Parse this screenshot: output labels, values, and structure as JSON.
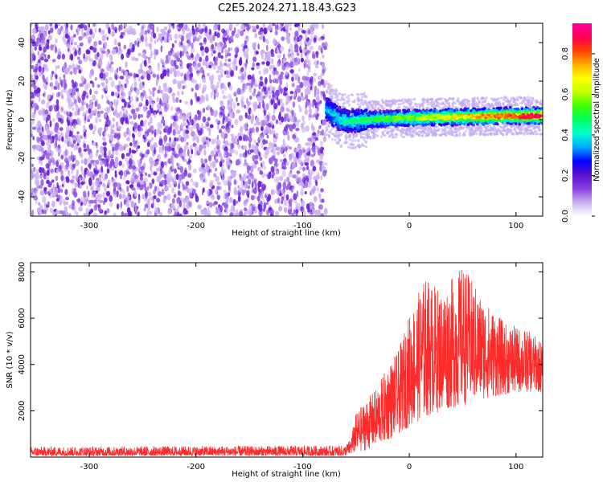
{
  "title": "C2E5.2024.271.18.43.G23",
  "chart_data": [
    {
      "type": "heatmap",
      "xlabel": "Height of straight line (km)",
      "ylabel": "Frequency (Hz)",
      "xlim": [
        -355,
        125
      ],
      "ylim": [
        -50,
        50
      ],
      "xticks": [
        -300,
        -200,
        -100,
        0,
        100
      ],
      "yticks": [
        -40,
        -20,
        0,
        20,
        40
      ],
      "colorbar": {
        "label": "Normalized spectral amplitude",
        "ticks": [
          0.0,
          0.2,
          0.4,
          0.6,
          0.8
        ],
        "tick_labels": [
          "0.0",
          "0.2",
          "0.4",
          "0.6",
          "0.8"
        ],
        "range": [
          0,
          0.95
        ],
        "colors": [
          "#ffffff",
          "#c8b0f0",
          "#8a3ee0",
          "#5a10d0",
          "#0000ff",
          "#00aaff",
          "#00ffd0",
          "#00ff60",
          "#40ff00",
          "#c0ff00",
          "#ffff00",
          "#ffb000",
          "#ff4000",
          "#ff0050",
          "#ff00a0"
        ]
      },
      "regions": [
        {
          "name": "noise",
          "x_range": [
            -355,
            -78
          ],
          "freq_range": [
            -50,
            50
          ],
          "amplitude_range": [
            0.0,
            0.15
          ]
        },
        {
          "name": "signal_band",
          "x_range": [
            -78,
            125
          ],
          "freq_center": [
            {
              "x": -78,
              "f": 6
            },
            {
              "x": -65,
              "f": 0
            },
            {
              "x": -55,
              "f": -1
            },
            {
              "x": -40,
              "f": 0
            },
            {
              "x": 0,
              "f": 1
            },
            {
              "x": 50,
              "f": 1.5
            },
            {
              "x": 100,
              "f": 2
            },
            {
              "x": 125,
              "f": 2
            }
          ],
          "band_halfwidth_hz": 5,
          "amplitude_range": [
            0.1,
            0.9
          ]
        }
      ],
      "grid": false
    },
    {
      "type": "line",
      "xlabel": "Height of straight line (km)",
      "ylabel": "SNR (10 * v/v)",
      "xlim": [
        -355,
        125
      ],
      "ylim": [
        0,
        8400
      ],
      "xticks": [
        -300,
        -200,
        -100,
        0,
        100
      ],
      "yticks": [
        2000,
        4000,
        6000,
        8000
      ],
      "color": "#ff2a2a",
      "envelope": [
        {
          "x": -355,
          "min": 60,
          "max": 450
        },
        {
          "x": -60,
          "min": 60,
          "max": 500
        },
        {
          "x": -55,
          "min": 100,
          "max": 800
        },
        {
          "x": -50,
          "min": 200,
          "max": 1900
        },
        {
          "x": -40,
          "min": 300,
          "max": 2500
        },
        {
          "x": -30,
          "min": 500,
          "max": 3000
        },
        {
          "x": -20,
          "min": 700,
          "max": 4000
        },
        {
          "x": -10,
          "min": 1000,
          "max": 4600
        },
        {
          "x": 0,
          "min": 1300,
          "max": 6200
        },
        {
          "x": 15,
          "min": 1700,
          "max": 7800
        },
        {
          "x": 30,
          "min": 2000,
          "max": 7200
        },
        {
          "x": 50,
          "min": 2200,
          "max": 8300
        },
        {
          "x": 70,
          "min": 2500,
          "max": 6800
        },
        {
          "x": 90,
          "min": 2700,
          "max": 5800
        },
        {
          "x": 110,
          "min": 2800,
          "max": 5500
        },
        {
          "x": 125,
          "min": 2800,
          "max": 5000
        }
      ],
      "grid": false
    }
  ]
}
